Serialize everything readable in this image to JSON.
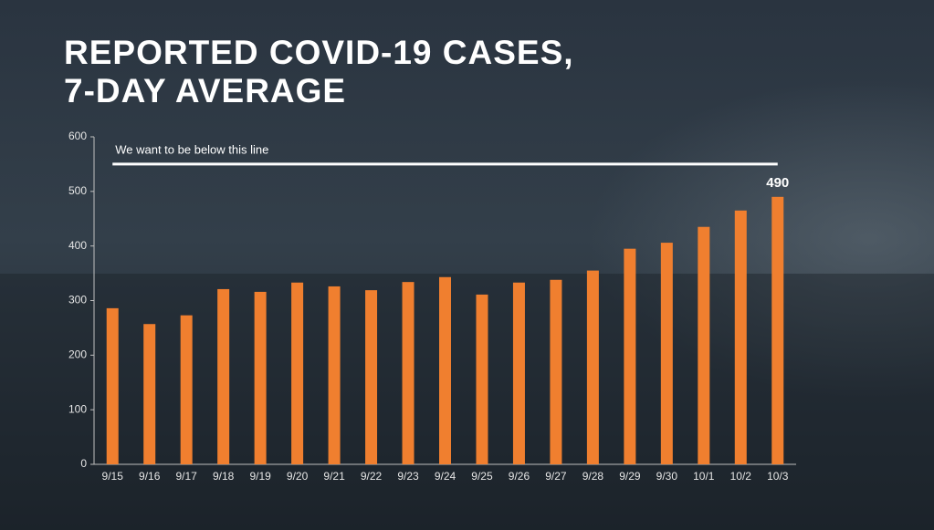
{
  "chart_data": {
    "type": "bar",
    "title": [
      "REPORTED COVID-19 CASES,",
      "7-DAY AVERAGE"
    ],
    "categories": [
      "9/15",
      "9/16",
      "9/17",
      "9/18",
      "9/19",
      "9/20",
      "9/21",
      "9/22",
      "9/23",
      "9/24",
      "9/25",
      "9/26",
      "9/27",
      "9/28",
      "9/29",
      "9/30",
      "10/1",
      "10/2",
      "10/3"
    ],
    "values": [
      286,
      257,
      273,
      321,
      316,
      333,
      326,
      319,
      334,
      343,
      311,
      333,
      338,
      355,
      395,
      406,
      435,
      465,
      490
    ],
    "value_labels": [
      null,
      null,
      null,
      null,
      null,
      null,
      null,
      null,
      null,
      null,
      null,
      null,
      null,
      null,
      null,
      null,
      null,
      null,
      "490"
    ],
    "color": "#f07f2f",
    "ylim": [
      0,
      600
    ],
    "yticks": [
      0,
      100,
      200,
      300,
      400,
      500,
      600
    ],
    "reference_line": {
      "value": 550,
      "label": "We want to be below this line",
      "color": "#ffffff"
    }
  }
}
